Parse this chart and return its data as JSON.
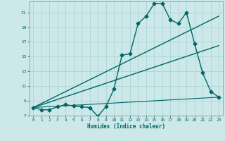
{
  "title": "",
  "xlabel": "Humidex (Indice chaleur)",
  "ylabel": "",
  "bg_color": "#cce8e8",
  "line_color": "#006666",
  "grid_color": "#b0d8d8",
  "xlim": [
    -0.5,
    23.5
  ],
  "ylim": [
    7,
    22.5
  ],
  "yticks": [
    7,
    9,
    11,
    13,
    15,
    17,
    19,
    21
  ],
  "xticks": [
    0,
    1,
    2,
    3,
    4,
    5,
    6,
    7,
    8,
    9,
    10,
    11,
    12,
    13,
    14,
    15,
    16,
    17,
    18,
    19,
    20,
    21,
    22,
    23
  ],
  "series": [
    {
      "x": [
        0,
        1,
        2,
        3,
        4,
        5,
        6,
        7,
        8,
        9,
        10,
        11,
        12,
        13,
        14,
        15,
        16,
        17,
        18,
        19,
        20,
        21,
        22,
        23
      ],
      "y": [
        8.1,
        7.8,
        7.8,
        8.2,
        8.5,
        8.3,
        8.2,
        8.1,
        6.9,
        8.2,
        10.6,
        15.2,
        15.4,
        19.5,
        20.5,
        22.2,
        22.2,
        20.0,
        19.5,
        21.0,
        16.8,
        12.8,
        10.3,
        9.5
      ],
      "marker": "D",
      "markersize": 2.5,
      "linewidth": 1.0
    },
    {
      "x": [
        0,
        23
      ],
      "y": [
        8.1,
        20.5
      ],
      "marker": null,
      "markersize": 0,
      "linewidth": 1.0
    },
    {
      "x": [
        0,
        23
      ],
      "y": [
        8.1,
        16.5
      ],
      "marker": null,
      "markersize": 0,
      "linewidth": 1.0
    },
    {
      "x": [
        0,
        23
      ],
      "y": [
        8.1,
        9.5
      ],
      "marker": null,
      "markersize": 0,
      "linewidth": 0.8
    }
  ]
}
